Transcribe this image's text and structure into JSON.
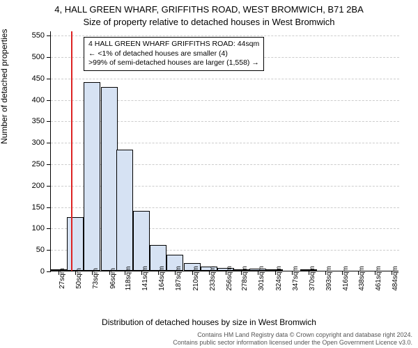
{
  "titles": {
    "main": "4, HALL GREEN WHARF, GRIFFITHS ROAD, WEST BROMWICH, B71 2BA",
    "sub": "Size of property relative to detached houses in West Bromwich"
  },
  "axes": {
    "ylabel": "Number of detached properties",
    "xlabel": "Distribution of detached houses by size in West Bromwich",
    "ylim_max": 560,
    "yticks": [
      0,
      50,
      100,
      150,
      200,
      250,
      300,
      350,
      400,
      450,
      500,
      550
    ]
  },
  "chart": {
    "type": "histogram",
    "bar_fill": "#d6e2f3",
    "bar_border": "#000000",
    "grid_color": "#cccccc",
    "ref_line_color": "#dd2222",
    "ref_line_x_sqm": 44,
    "x_min": 16,
    "x_max": 495,
    "bin_width_sqm": 23,
    "bars": [
      {
        "x": 27,
        "count": 3
      },
      {
        "x": 50,
        "count": 125
      },
      {
        "x": 73,
        "count": 440
      },
      {
        "x": 96,
        "count": 428
      },
      {
        "x": 118,
        "count": 283
      },
      {
        "x": 141,
        "count": 140
      },
      {
        "x": 164,
        "count": 60
      },
      {
        "x": 187,
        "count": 38
      },
      {
        "x": 210,
        "count": 18
      },
      {
        "x": 233,
        "count": 10
      },
      {
        "x": 256,
        "count": 6
      },
      {
        "x": 278,
        "count": 3
      },
      {
        "x": 301,
        "count": 5
      },
      {
        "x": 324,
        "count": 2
      },
      {
        "x": 347,
        "count": 0
      },
      {
        "x": 370,
        "count": 1
      },
      {
        "x": 393,
        "count": 0
      },
      {
        "x": 416,
        "count": 0
      },
      {
        "x": 438,
        "count": 0
      },
      {
        "x": 461,
        "count": 0
      },
      {
        "x": 484,
        "count": 0
      }
    ]
  },
  "annotation": {
    "line1": "4 HALL GREEN WHARF GRIFFITHS ROAD: 44sqm",
    "line2": "← <1% of detached houses are smaller (4)",
    "line3": ">99% of semi-detached houses are larger (1,558) →"
  },
  "footer": {
    "line1": "Contains HM Land Registry data © Crown copyright and database right 2024.",
    "line2": "Contains public sector information licensed under the Open Government Licence v3.0."
  }
}
